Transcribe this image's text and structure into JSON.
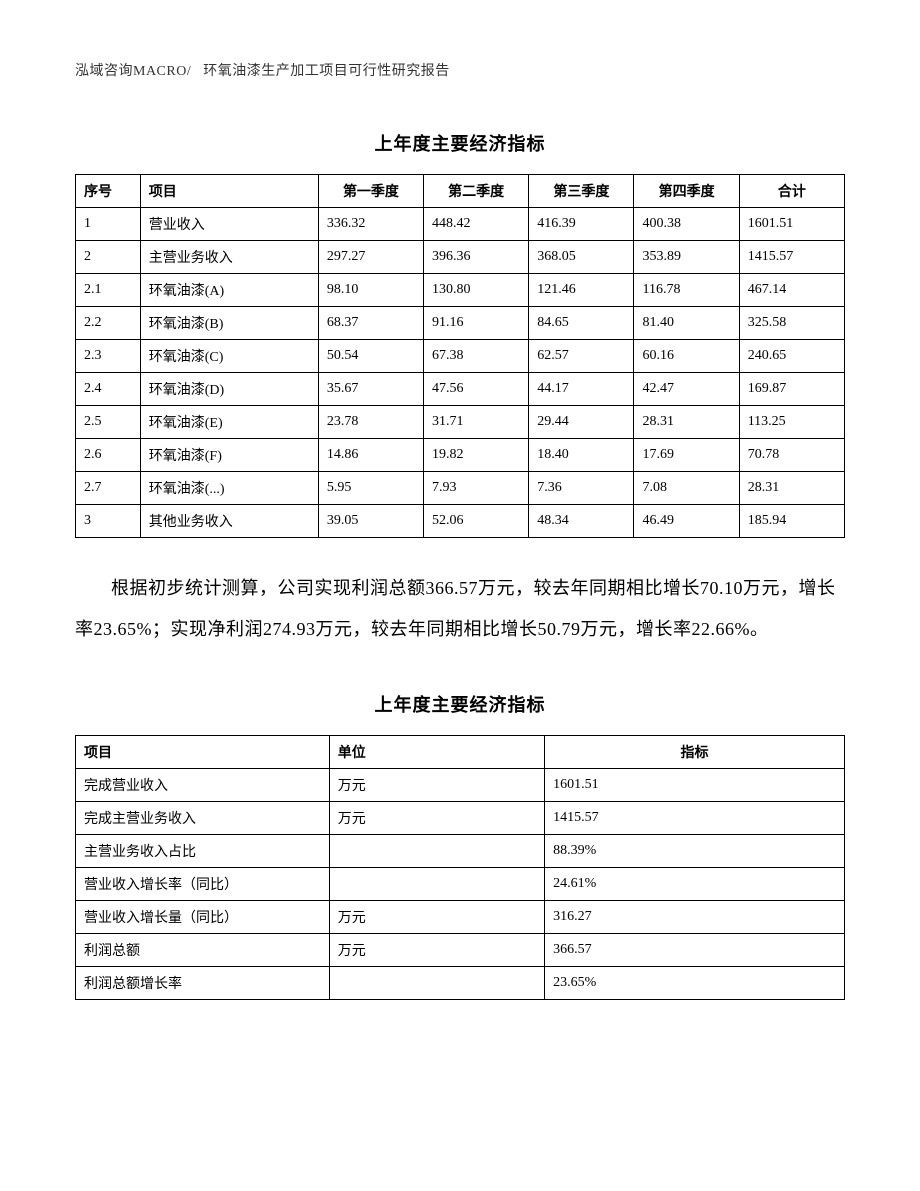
{
  "header": {
    "company": "泓域咨询MACRO/",
    "report_title": "环氧油漆生产加工项目可行性研究报告"
  },
  "table1": {
    "title": "上年度主要经济指标",
    "columns": [
      "序号",
      "项目",
      "第一季度",
      "第二季度",
      "第三季度",
      "第四季度",
      "合计"
    ],
    "rows": [
      [
        "1",
        "营业收入",
        "336.32",
        "448.42",
        "416.39",
        "400.38",
        "1601.51"
      ],
      [
        "2",
        "主营业务收入",
        "297.27",
        "396.36",
        "368.05",
        "353.89",
        "1415.57"
      ],
      [
        "2.1",
        "环氧油漆(A)",
        "98.10",
        "130.80",
        "121.46",
        "116.78",
        "467.14"
      ],
      [
        "2.2",
        "环氧油漆(B)",
        "68.37",
        "91.16",
        "84.65",
        "81.40",
        "325.58"
      ],
      [
        "2.3",
        "环氧油漆(C)",
        "50.54",
        "67.38",
        "62.57",
        "60.16",
        "240.65"
      ],
      [
        "2.4",
        "环氧油漆(D)",
        "35.67",
        "47.56",
        "44.17",
        "42.47",
        "169.87"
      ],
      [
        "2.5",
        "环氧油漆(E)",
        "23.78",
        "31.71",
        "29.44",
        "28.31",
        "113.25"
      ],
      [
        "2.6",
        "环氧油漆(F)",
        "14.86",
        "19.82",
        "18.40",
        "17.69",
        "70.78"
      ],
      [
        "2.7",
        "环氧油漆(...)",
        "5.95",
        "7.93",
        "7.36",
        "7.08",
        "28.31"
      ],
      [
        "3",
        "其他业务收入",
        "39.05",
        "52.06",
        "48.34",
        "46.49",
        "185.94"
      ]
    ]
  },
  "paragraph": "根据初步统计测算，公司实现利润总额366.57万元，较去年同期相比增长70.10万元，增长率23.65%；实现净利润274.93万元，较去年同期相比增长50.79万元，增长率22.66%。",
  "table2": {
    "title": "上年度主要经济指标",
    "columns": [
      "项目",
      "单位",
      "指标"
    ],
    "rows": [
      [
        "完成营业收入",
        "万元",
        "1601.51"
      ],
      [
        "完成主营业务收入",
        "万元",
        "1415.57"
      ],
      [
        "主营业务收入占比",
        "",
        "88.39%"
      ],
      [
        "营业收入增长率（同比）",
        "",
        "24.61%"
      ],
      [
        "营业收入增长量（同比）",
        "万元",
        "316.27"
      ],
      [
        "利润总额",
        "万元",
        "366.57"
      ],
      [
        "利润总额增长率",
        "",
        "23.65%"
      ]
    ]
  }
}
